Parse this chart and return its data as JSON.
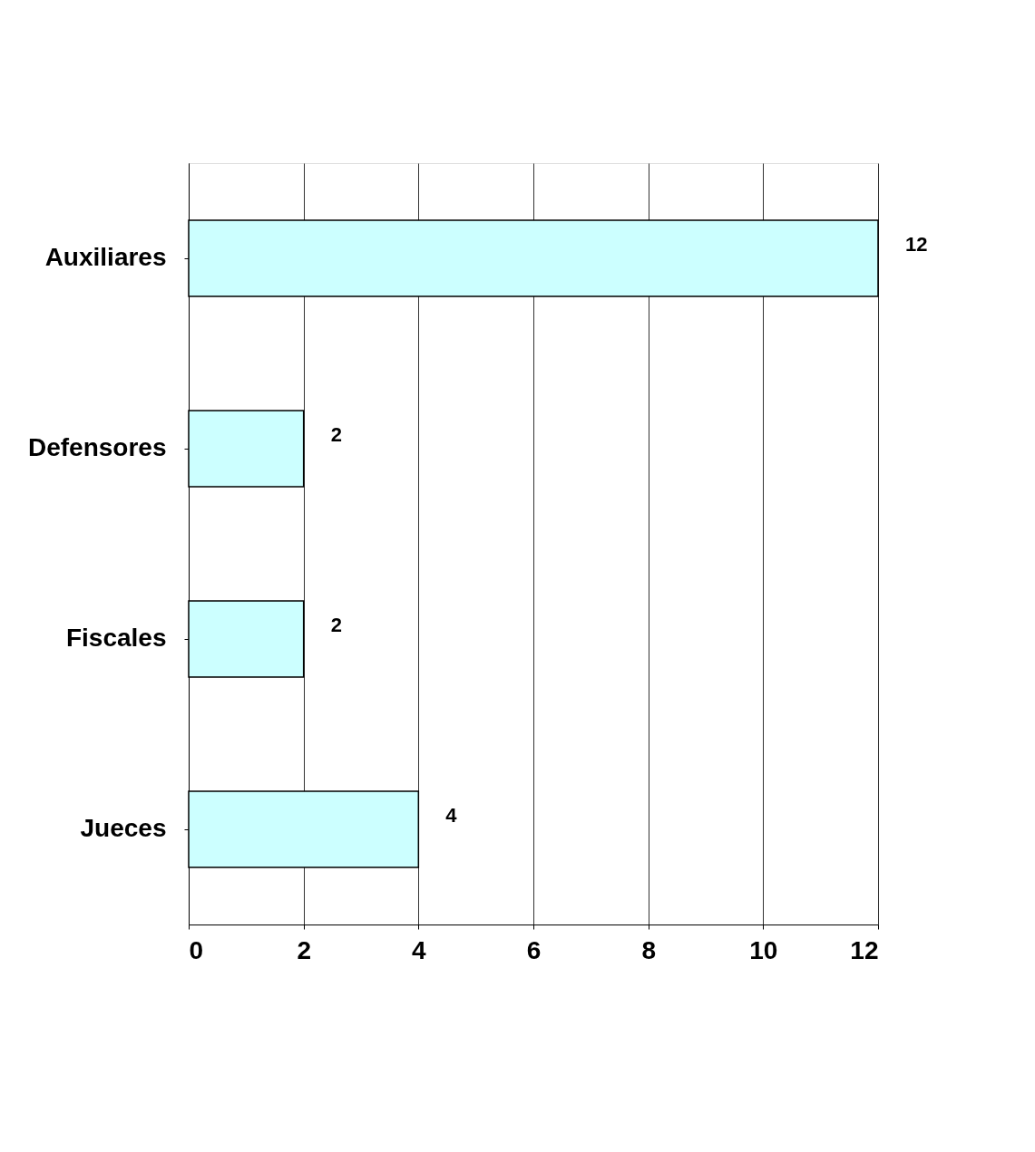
{
  "chart_data": {
    "type": "bar",
    "orientation": "horizontal",
    "categories": [
      "Auxiliares",
      "Defensores",
      "Fiscales",
      "Jueces"
    ],
    "values": [
      12,
      2,
      2,
      4
    ],
    "color": "#ccffff",
    "xlim": [
      0,
      12
    ],
    "xticks": [
      0,
      2,
      4,
      6,
      8,
      10,
      12
    ],
    "grid": "x",
    "data_labels": true
  }
}
